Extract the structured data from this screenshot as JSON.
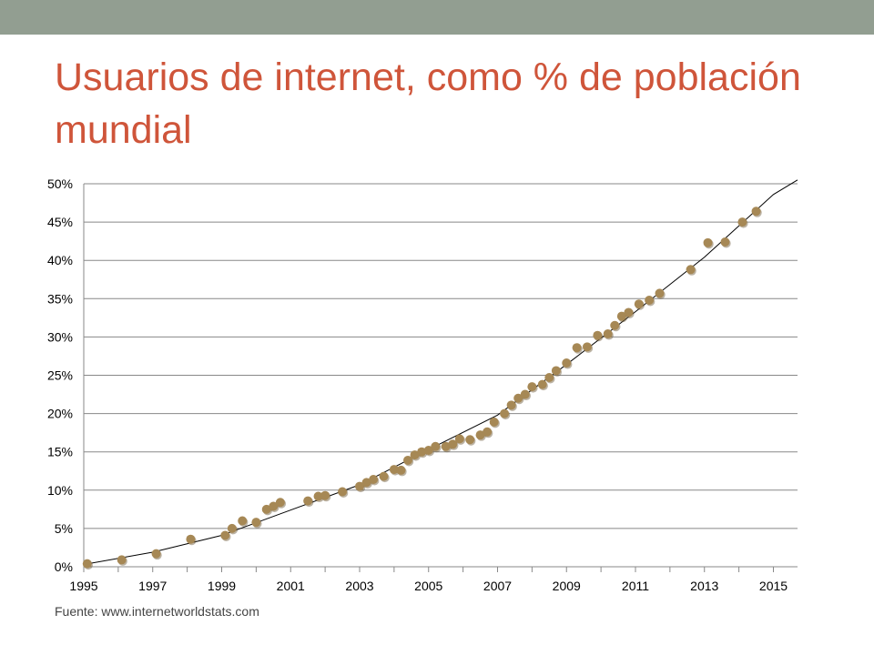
{
  "slide": {
    "title": "Usuarios de internet, como % de población mundial",
    "source": "Fuente: www.internetworldstats.com",
    "top_bar_color": "#929e91",
    "title_color": "#cf553a"
  },
  "chart_data": {
    "type": "scatter",
    "title": "",
    "xlabel": "",
    "ylabel": "",
    "xlim": [
      1995,
      2015.7
    ],
    "ylim": [
      0,
      50
    ],
    "x_ticks": [
      1995,
      1997,
      1999,
      2001,
      2003,
      2005,
      2007,
      2009,
      2011,
      2013,
      2015
    ],
    "y_ticks": [
      "0%",
      "5%",
      "10%",
      "15%",
      "20%",
      "25%",
      "30%",
      "35%",
      "40%",
      "45%",
      "50%"
    ],
    "y_tick_values": [
      0,
      5,
      10,
      15,
      20,
      25,
      30,
      35,
      40,
      45,
      50
    ],
    "grid": "horizontal",
    "legend": "none",
    "point_color": "#a68855",
    "trendline_color": "#000000",
    "series": [
      {
        "points": [
          [
            1995.1,
            0.4
          ],
          [
            1996.1,
            0.9
          ],
          [
            1997.1,
            1.7
          ],
          [
            1998.1,
            3.6
          ],
          [
            1999.1,
            4.1
          ],
          [
            1999.3,
            5.0
          ],
          [
            1999.6,
            6.0
          ],
          [
            2000.0,
            5.8
          ],
          [
            2000.3,
            7.5
          ],
          [
            2000.5,
            7.9
          ],
          [
            2000.7,
            8.4
          ],
          [
            2001.5,
            8.6
          ],
          [
            2001.8,
            9.2
          ],
          [
            2002.0,
            9.3
          ],
          [
            2002.5,
            9.8
          ],
          [
            2003.0,
            10.5
          ],
          [
            2003.2,
            11.0
          ],
          [
            2003.4,
            11.4
          ],
          [
            2003.7,
            11.8
          ],
          [
            2004.0,
            12.7
          ],
          [
            2004.2,
            12.6
          ],
          [
            2004.4,
            13.9
          ],
          [
            2004.6,
            14.6
          ],
          [
            2004.8,
            15.0
          ],
          [
            2005.0,
            15.2
          ],
          [
            2005.2,
            15.7
          ],
          [
            2005.5,
            15.7
          ],
          [
            2005.7,
            16.0
          ],
          [
            2005.9,
            16.7
          ],
          [
            2006.2,
            16.6
          ],
          [
            2006.5,
            17.2
          ],
          [
            2006.7,
            17.6
          ],
          [
            2006.9,
            18.9
          ],
          [
            2007.2,
            20.0
          ],
          [
            2007.4,
            21.1
          ],
          [
            2007.6,
            22.0
          ],
          [
            2007.8,
            22.5
          ],
          [
            2008.0,
            23.5
          ],
          [
            2008.3,
            23.8
          ],
          [
            2008.5,
            24.7
          ],
          [
            2008.7,
            25.6
          ],
          [
            2009.0,
            26.6
          ],
          [
            2009.3,
            28.6
          ],
          [
            2009.6,
            28.7
          ],
          [
            2009.9,
            30.2
          ],
          [
            2010.2,
            30.4
          ],
          [
            2010.4,
            31.5
          ],
          [
            2010.6,
            32.7
          ],
          [
            2010.8,
            33.2
          ],
          [
            2011.1,
            34.3
          ],
          [
            2011.4,
            34.8
          ],
          [
            2011.7,
            35.7
          ],
          [
            2012.6,
            38.8
          ],
          [
            2013.1,
            42.3
          ],
          [
            2013.6,
            42.4
          ],
          [
            2014.1,
            45.0
          ],
          [
            2014.5,
            46.4
          ]
        ]
      }
    ],
    "trendline": {
      "type": "polynomial",
      "points": [
        [
          1995.0,
          0.3
        ],
        [
          1997.0,
          1.9
        ],
        [
          1999.0,
          4.1
        ],
        [
          2001.0,
          7.4
        ],
        [
          2003.0,
          10.7
        ],
        [
          2005.0,
          15.3
        ],
        [
          2007.0,
          19.8
        ],
        [
          2009.0,
          26.4
        ],
        [
          2011.0,
          33.3
        ],
        [
          2013.0,
          40.4
        ],
        [
          2015.0,
          48.6
        ],
        [
          2015.7,
          50.5
        ]
      ]
    }
  }
}
